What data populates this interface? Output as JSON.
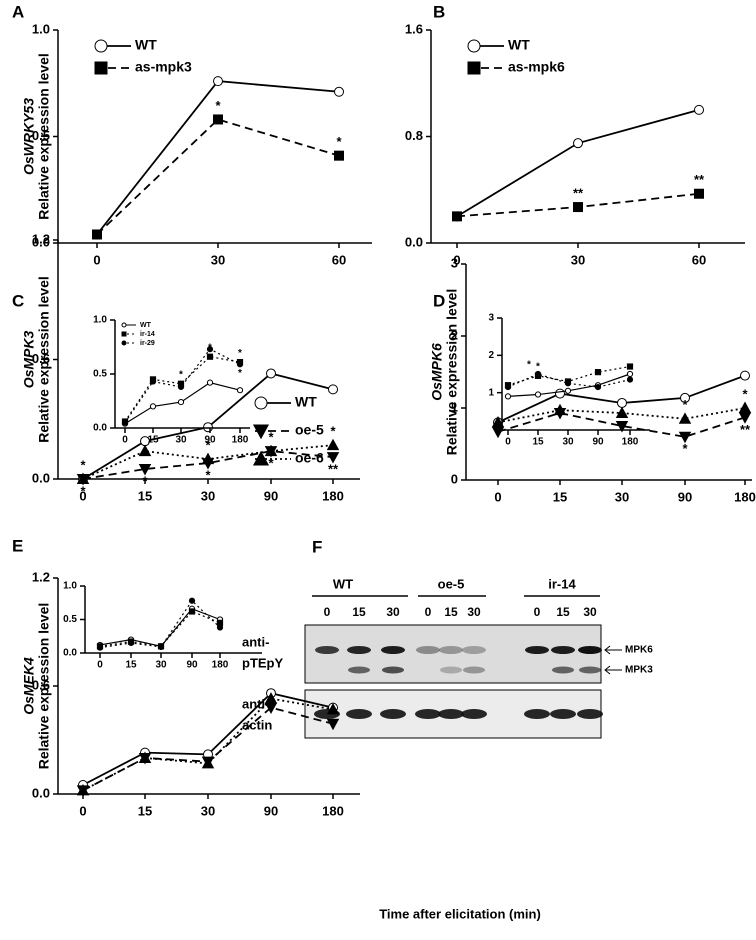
{
  "chart_data": [
    {
      "type": "line",
      "panel": "A",
      "ylabel_gene": "OsWRKY53",
      "ylabel": "Relative expression level",
      "categories": [
        "0",
        "30",
        "60"
      ],
      "ylim": [
        0,
        1.0
      ],
      "yticks": [
        {
          "value": 0,
          "label": "0.0"
        },
        0.5,
        {
          "value": 1,
          "label": "1.0"
        }
      ],
      "legend": true,
      "series": [
        {
          "name": "WT",
          "color": "#000000",
          "marker": "circle-open",
          "line": "solid",
          "values": [
            0.04,
            0.76,
            0.71
          ]
        },
        {
          "name": "as-mpk3",
          "color": "#000000",
          "marker": "square",
          "line": "dashed",
          "values": [
            0.04,
            0.58,
            0.41
          ],
          "significance": [
            null,
            "*",
            "*"
          ],
          "significance_side": "above"
        }
      ]
    },
    {
      "type": "line",
      "panel": "B",
      "categories": [
        "0",
        "30",
        "60"
      ],
      "ylim": [
        0,
        1.6
      ],
      "yticks": [
        {
          "value": 0,
          "label": "0.0"
        },
        0.8,
        1.6
      ],
      "legend": true,
      "series": [
        {
          "name": "WT",
          "color": "#000000",
          "marker": "circle-open",
          "line": "solid",
          "values": [
            0.2,
            0.75,
            1.0
          ]
        },
        {
          "name": "as-mpk6",
          "color": "#000000",
          "marker": "square",
          "line": "dashed",
          "values": [
            0.2,
            0.27,
            0.37
          ],
          "significance": [
            null,
            "**",
            "**"
          ],
          "significance_side": "above"
        }
      ]
    },
    {
      "type": "line",
      "panel": "C",
      "ylabel_gene": "OsMPK3",
      "ylabel": "Relative expression level",
      "categories": [
        "0",
        "15",
        "30",
        "90",
        "180"
      ],
      "ylim": [
        0,
        1.2
      ],
      "yticks": [
        {
          "value": 0,
          "label": "0.0"
        },
        0.6,
        1.2
      ],
      "legend": true,
      "series": [
        {
          "name": "WT",
          "color": "#000000",
          "marker": "circle-open",
          "line": "solid",
          "values": [
            0.0,
            0.19,
            0.26,
            0.53,
            0.45
          ]
        },
        {
          "name": "oe-5",
          "color": "#000000",
          "marker": "triangle-down",
          "line": "dashed",
          "values": [
            0.0,
            0.05,
            0.08,
            0.14,
            0.11
          ],
          "significance": [
            "*",
            "*",
            "*",
            "*",
            "**"
          ],
          "significance_side": "below"
        },
        {
          "name": "oe-6",
          "color": "#000000",
          "marker": "triangle-up",
          "line": "dotted",
          "values": [
            0.0,
            0.14,
            0.1,
            0.14,
            0.17
          ],
          "significance": [
            "*",
            null,
            "*",
            "*",
            "*"
          ],
          "significance_side": "above"
        }
      ]
    },
    {
      "type": "line",
      "inset": true,
      "categories": [
        "0",
        "15",
        "30",
        "90",
        "180"
      ],
      "ylim": [
        0,
        1.0
      ],
      "yticks": [
        {
          "value": 0,
          "label": "0.0"
        },
        0.5,
        {
          "value": 1,
          "label": "1.0"
        }
      ],
      "legend": true,
      "series": [
        {
          "name": "WT",
          "color": "#000000",
          "marker": "circle-open",
          "line": "solid",
          "values": [
            0.04,
            0.2,
            0.24,
            0.42,
            0.35
          ]
        },
        {
          "name": "ir-14",
          "color": "#000000",
          "marker": "square",
          "line": "dotted",
          "values": [
            0.06,
            0.45,
            0.41,
            0.66,
            0.61
          ],
          "significance": [
            null,
            null,
            "*",
            "*",
            "*"
          ],
          "significance_side": "above"
        },
        {
          "name": "ir-29",
          "color": "#000000",
          "marker": "circle",
          "line": "dotted",
          "values": [
            0.05,
            0.43,
            0.38,
            0.73,
            0.59
          ],
          "significance": [
            null,
            null,
            null,
            "*",
            "*"
          ],
          "significance_side": "below"
        }
      ]
    },
    {
      "type": "line",
      "panel": "D",
      "ylabel_gene": "OsMPK6",
      "ylabel": "Relative expression level",
      "categories": [
        "0",
        "15",
        "30",
        "90",
        "180"
      ],
      "ylim": [
        0,
        3
      ],
      "yticks": [
        0,
        1,
        2,
        3
      ],
      "legend": false,
      "series": [
        {
          "name": "WT",
          "color": "#000000",
          "marker": "circle-open",
          "line": "solid",
          "values": [
            0.8,
            1.2,
            1.07,
            1.14,
            1.45
          ]
        },
        {
          "name": "oe-5",
          "color": "#000000",
          "marker": "triangle-down",
          "line": "dashed",
          "values": [
            0.67,
            0.93,
            0.75,
            0.6,
            0.87
          ],
          "significance": [
            null,
            null,
            null,
            "*",
            "**"
          ],
          "significance_side": "below"
        },
        {
          "name": "oe-6",
          "color": "#000000",
          "marker": "triangle-up",
          "line": "dotted",
          "values": [
            0.8,
            0.97,
            0.93,
            0.85,
            1.0
          ],
          "significance": [
            null,
            null,
            null,
            "*",
            "*"
          ],
          "significance_side": "above"
        }
      ]
    },
    {
      "type": "line",
      "inset": true,
      "categories": [
        "0",
        "15",
        "30",
        "90",
        "180"
      ],
      "ylim": [
        0,
        3
      ],
      "yticks": [
        1,
        2,
        3
      ],
      "legend": false,
      "series": [
        {
          "name": "WT",
          "color": "#000000",
          "marker": "circle-open",
          "line": "solid",
          "values": [
            0.9,
            0.95,
            1.05,
            1.2,
            1.5
          ]
        },
        {
          "name": "ir-14",
          "color": "#000000",
          "marker": "square",
          "line": "dotted",
          "values": [
            1.2,
            1.45,
            1.3,
            1.55,
            1.7
          ],
          "significance": [
            null,
            "*",
            null,
            null,
            null
          ],
          "significance_side": "above"
        },
        {
          "name": "ir-29",
          "color": "#000000",
          "marker": "circle",
          "line": "dotted",
          "values": [
            1.15,
            1.5,
            1.25,
            1.15,
            1.35
          ],
          "significance": [
            null,
            "*",
            null,
            null,
            null
          ],
          "significance_side": "left"
        }
      ]
    },
    {
      "type": "line",
      "panel": "E",
      "ylabel_gene": "OsMEK4",
      "ylabel": "Relative expression level",
      "categories": [
        "0",
        "15",
        "30",
        "90",
        "180"
      ],
      "ylim": [
        0,
        1.2
      ],
      "yticks": [
        {
          "value": 0,
          "label": "0.0"
        },
        0.6,
        1.2
      ],
      "legend": false,
      "series": [
        {
          "name": "WT",
          "color": "#000000",
          "marker": "circle-open",
          "line": "solid",
          "values": [
            0.05,
            0.23,
            0.22,
            0.56,
            0.48
          ]
        },
        {
          "name": "oe-5",
          "color": "#000000",
          "marker": "triangle-down",
          "line": "dashed",
          "values": [
            0.02,
            0.2,
            0.18,
            0.48,
            0.39
          ]
        },
        {
          "name": "oe-6",
          "color": "#000000",
          "marker": "triangle-up",
          "line": "dotted",
          "values": [
            0.02,
            0.2,
            0.17,
            0.53,
            0.47
          ]
        }
      ]
    },
    {
      "type": "line",
      "inset": true,
      "categories": [
        "0",
        "15",
        "30",
        "90",
        "180"
      ],
      "ylim": [
        0,
        1.0
      ],
      "yticks": [
        {
          "value": 0,
          "label": "0.0"
        },
        0.5,
        {
          "value": 1,
          "label": "1.0"
        }
      ],
      "legend": false,
      "series": [
        {
          "name": "WT",
          "color": "#000000",
          "marker": "circle-open",
          "line": "solid",
          "values": [
            0.12,
            0.2,
            0.1,
            0.66,
            0.5
          ]
        },
        {
          "name": "ir-14",
          "color": "#000000",
          "marker": "square",
          "line": "dotted",
          "values": [
            0.1,
            0.17,
            0.1,
            0.62,
            0.45
          ]
        },
        {
          "name": "ir-29",
          "color": "#000000",
          "marker": "circle",
          "line": "dotted",
          "values": [
            0.08,
            0.15,
            0.09,
            0.78,
            0.38
          ]
        }
      ]
    }
  ],
  "blot": {
    "panel": "F",
    "groups": [
      "WT",
      "oe-5",
      "ir-14"
    ],
    "lanes": [
      "0",
      "15",
      "30",
      "0",
      "15",
      "30",
      "0",
      "15",
      "30"
    ],
    "row1": [
      "anti-",
      "pTEpY"
    ],
    "row2": [
      "anti-",
      "actin"
    ],
    "bands": [
      "MPK6",
      "MPK3"
    ]
  },
  "xlabel": "Time after elicitation (min)"
}
